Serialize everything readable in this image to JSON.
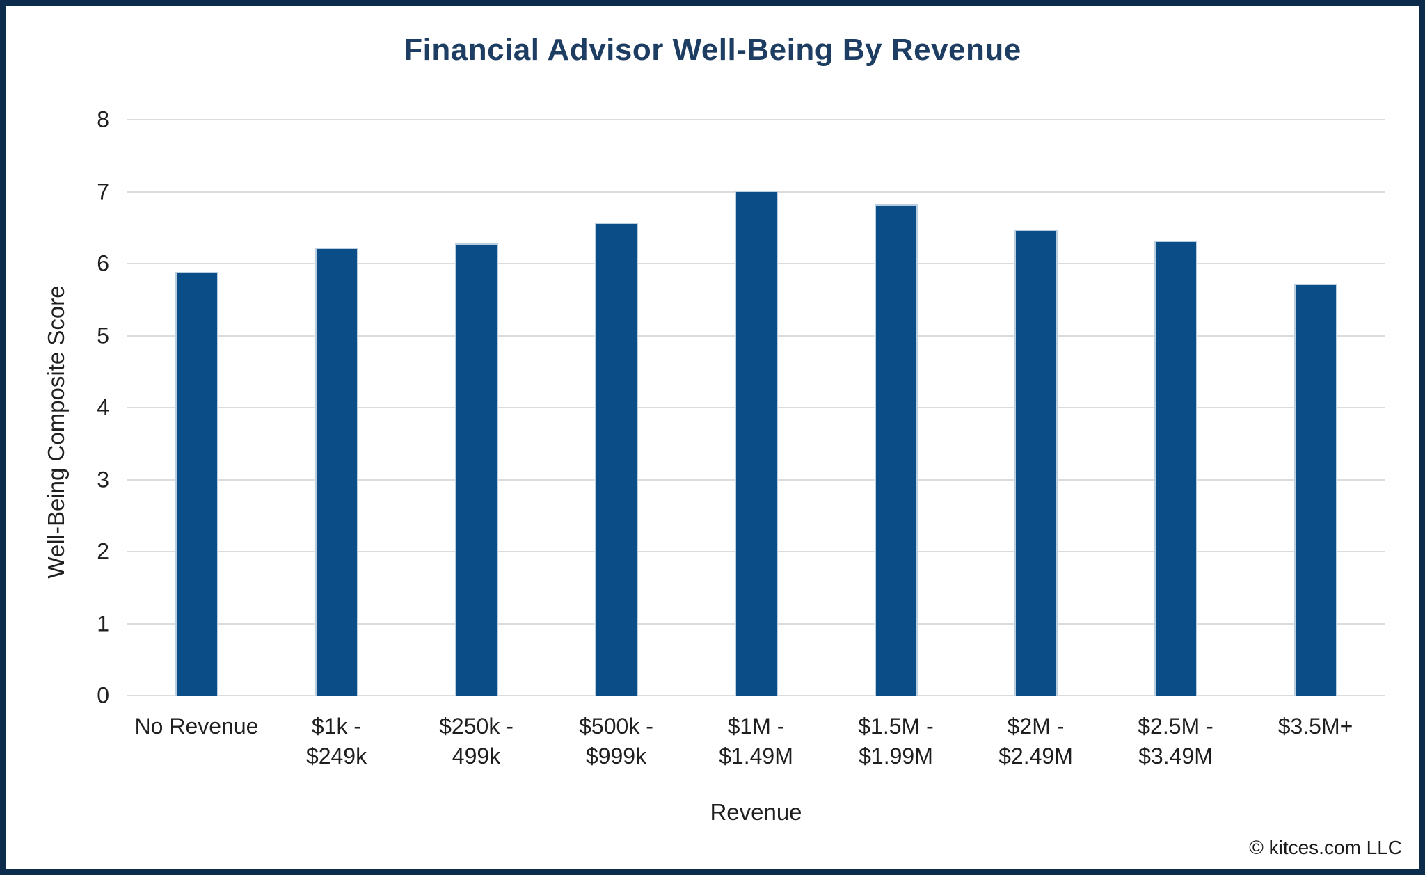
{
  "page": {
    "copyright": "© kitces.com LLC"
  },
  "chart_data": {
    "type": "bar",
    "title": "Financial Advisor Well-Being By Revenue",
    "xlabel": "Revenue",
    "ylabel": "Well-Being Composite Score",
    "ylim": [
      0,
      8
    ],
    "y_ticks": [
      8,
      7,
      6,
      5,
      4,
      3,
      2,
      1,
      0
    ],
    "grid": "horizontal",
    "legend": "none",
    "categories": [
      "No Revenue",
      "$1k - $249k",
      "$250k - 499k",
      "$500k - $999k",
      "$1M - $1.49M",
      "$1.5M - $1.99M",
      "$2M - $2.49M",
      "$2.5M - $3.49M",
      "$3.5M+"
    ],
    "categories_display": [
      "No Revenue",
      "$1k -\n$249k",
      "$250k -\n499k",
      "$500k -\n$999k",
      "$1M -\n$1.49M",
      "$1.5M -\n$1.99M",
      "$2M -\n$2.49M",
      "$2.5M -\n$3.49M",
      "$3.5M+"
    ],
    "values": [
      5.88,
      6.22,
      6.28,
      6.57,
      7.01,
      6.82,
      6.47,
      6.32,
      5.72
    ],
    "colors": {
      "bar_fill": "#0a4d87",
      "bar_edge": "#b9cfe0",
      "title": "#1e3d62",
      "frame_border": "#0d2b4b",
      "gridline": "#dcdcdc",
      "axis_text": "#1f1f1f"
    }
  }
}
